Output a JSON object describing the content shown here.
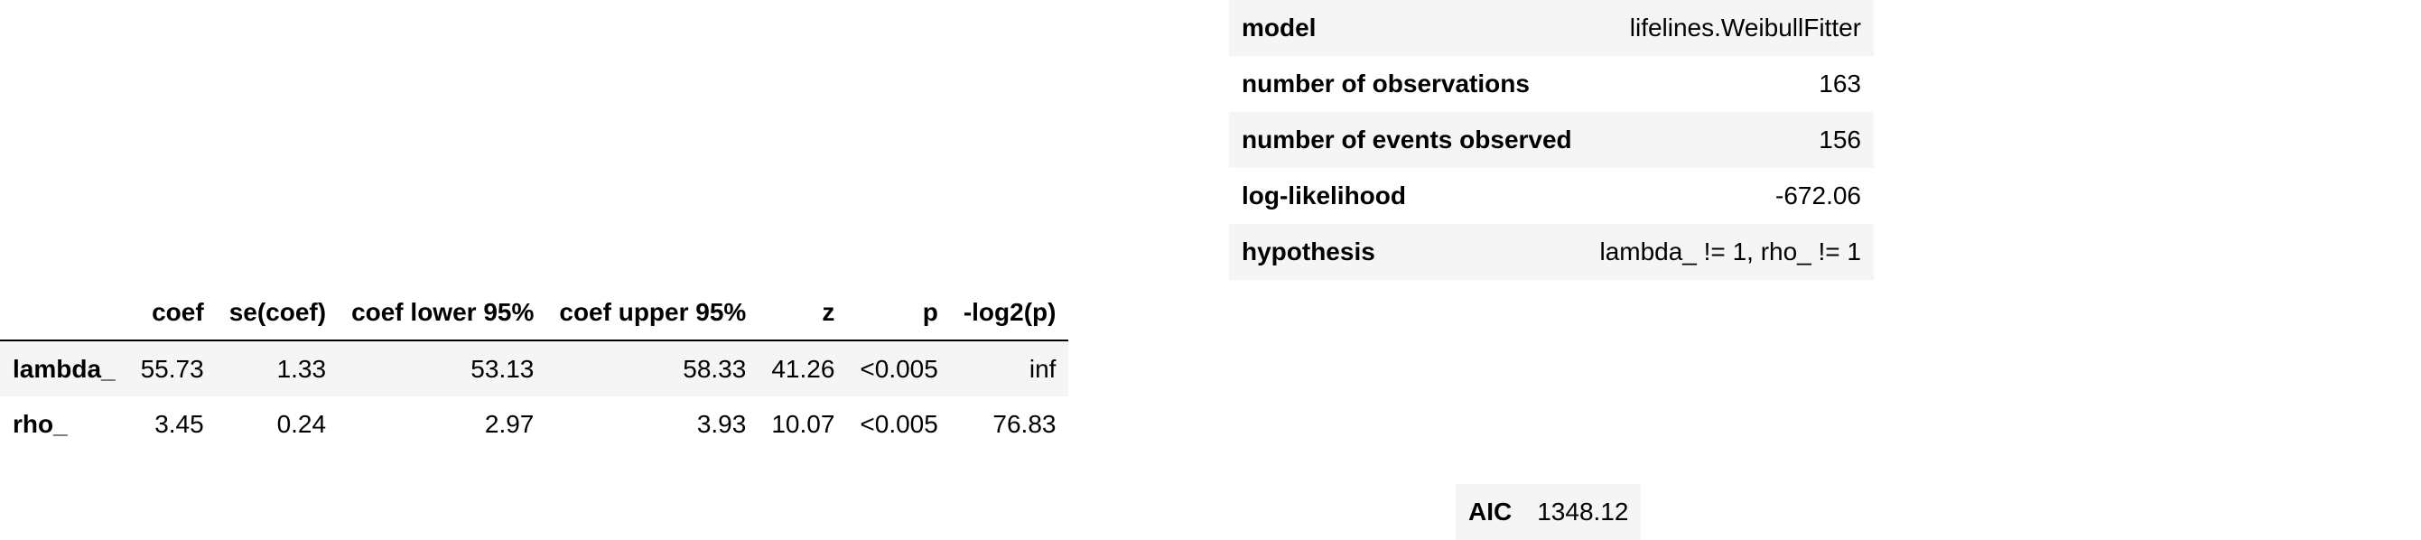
{
  "model_summary": [
    {
      "key": "model",
      "value": "lifelines.WeibullFitter"
    },
    {
      "key": "number of observations",
      "value": "163"
    },
    {
      "key": "number of events observed",
      "value": "156"
    },
    {
      "key": "log-likelihood",
      "value": "-672.06"
    },
    {
      "key": "hypothesis",
      "value": "lambda_ != 1, rho_ != 1"
    }
  ],
  "coefficients": {
    "columns": [
      "",
      "coef",
      "se(coef)",
      "coef lower 95%",
      "coef upper 95%",
      "z",
      "p",
      "-log2(p)"
    ],
    "rows": [
      {
        "name": "lambda_",
        "values": [
          "55.73",
          "1.33",
          "53.13",
          "58.33",
          "41.26",
          "<0.005",
          "inf"
        ]
      },
      {
        "name": "rho_",
        "values": [
          "3.45",
          "0.24",
          "2.97",
          "3.93",
          "10.07",
          "<0.005",
          "76.83"
        ]
      }
    ]
  },
  "aic": {
    "label": "AIC",
    "value": "1348.12"
  }
}
